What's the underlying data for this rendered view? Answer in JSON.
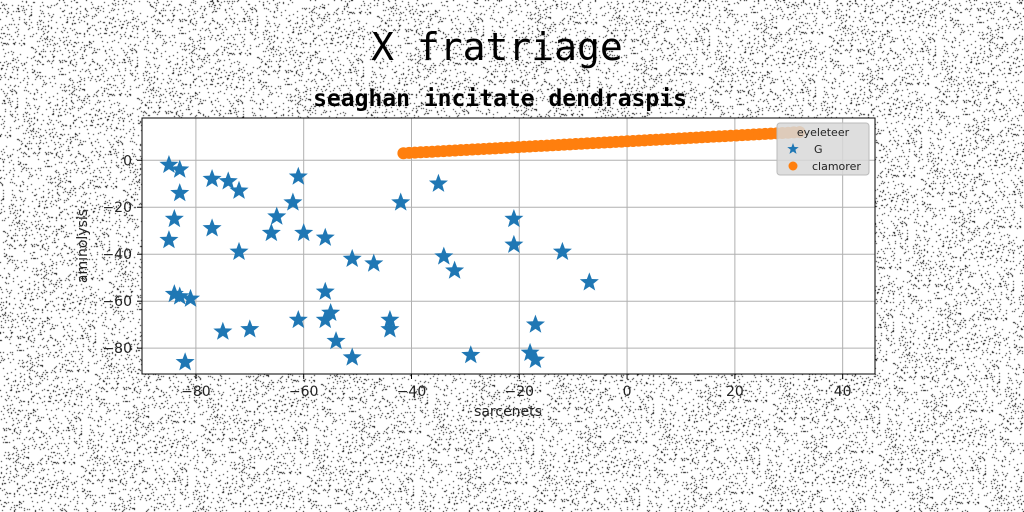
{
  "figure": {
    "suptitle": "X fratriage",
    "background_noise": "salt-and-pepper"
  },
  "chart_data": {
    "type": "scatter",
    "title": "seaghan incitate dendraspis",
    "xlabel": "sarcenets",
    "ylabel": "aminolysis",
    "xlim": [
      -90,
      46
    ],
    "ylim": [
      -91,
      18
    ],
    "xticks": [
      -80,
      -60,
      -40,
      -20,
      0,
      20,
      40
    ],
    "yticks": [
      0,
      -20,
      -40,
      -60,
      -80
    ],
    "xtick_labels": [
      "−80",
      "−60",
      "−40",
      "−20",
      "0",
      "20",
      "40"
    ],
    "ytick_labels": [
      "0",
      "−20",
      "−40",
      "−60",
      "−80"
    ],
    "grid": true,
    "legend": {
      "title": "eyeleteer",
      "placement": "top-right"
    },
    "series": [
      {
        "name": "G",
        "marker": "star",
        "color": "#1f77b4",
        "points": [
          [
            -85,
            -2
          ],
          [
            -83,
            -4
          ],
          [
            -83,
            -14
          ],
          [
            -84,
            -25
          ],
          [
            -85,
            -34
          ],
          [
            -84,
            -57
          ],
          [
            -83,
            -58
          ],
          [
            -81,
            -59
          ],
          [
            -82,
            -86
          ],
          [
            -77,
            -8
          ],
          [
            -74,
            -9
          ],
          [
            -72,
            -13
          ],
          [
            -77,
            -29
          ],
          [
            -72,
            -39
          ],
          [
            -75,
            -73
          ],
          [
            -70,
            -72
          ],
          [
            -61,
            -7
          ],
          [
            -62,
            -18
          ],
          [
            -65,
            -24
          ],
          [
            -66,
            -31
          ],
          [
            -60,
            -31
          ],
          [
            -61,
            -68
          ],
          [
            -56,
            -33
          ],
          [
            -56,
            -56
          ],
          [
            -56,
            -68
          ],
          [
            -55,
            -65
          ],
          [
            -54,
            -77
          ],
          [
            -51,
            -42
          ],
          [
            -51,
            -84
          ],
          [
            -47,
            -44
          ],
          [
            -42,
            -18
          ],
          [
            -44,
            -68
          ],
          [
            -44,
            -72
          ],
          [
            -35,
            -10
          ],
          [
            -34,
            -41
          ],
          [
            -32,
            -47
          ],
          [
            -29,
            -83
          ],
          [
            -21,
            -25
          ],
          [
            -21,
            -36
          ],
          [
            -18,
            -82
          ],
          [
            -17,
            -70
          ],
          [
            -17,
            -85
          ],
          [
            -12,
            -39
          ],
          [
            -7,
            -52
          ]
        ]
      },
      {
        "name": "clamorer",
        "marker": "circle",
        "color": "#ff7f0e",
        "x_range": [
          -41.5,
          32
        ],
        "y_range": [
          3,
          12
        ],
        "count": 70
      }
    ]
  }
}
